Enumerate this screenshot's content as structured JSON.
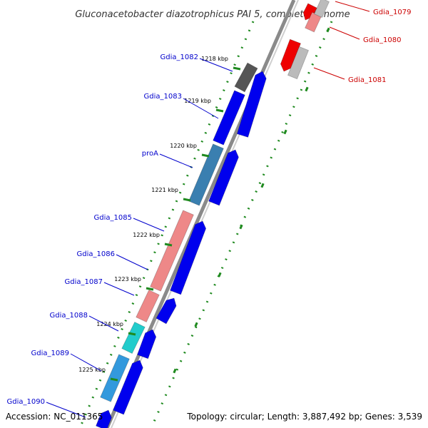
{
  "title": "Gluconacetobacter diazotrophicus PAI 5, complete genome",
  "footer": {
    "accession": "Accession: NC_011365",
    "summary": "Topology: circular; Length: 3,887,492 bp; Genes: 3,539"
  },
  "colors": {
    "backbone": "#8a8a8a",
    "tick": "#1f8a1f",
    "label_blue": "#0000cc",
    "label_red": "#cc0000",
    "gene_blue": "#0000ee",
    "gene_red": "#ee0000",
    "gene_pink": "#ee8888",
    "gene_steel": "#3a7fb0",
    "gene_teal": "#22cccc",
    "gene_cyan": "#3399dd",
    "gene_gray": "#555555",
    "gene_lightgray": "#bbbbbb"
  },
  "ticks": [
    {
      "label": "1218 kbp"
    },
    {
      "label": "1219 kbp"
    },
    {
      "label": "1220 kbp"
    },
    {
      "label": "1221 kbp"
    },
    {
      "label": "1222 kbp"
    },
    {
      "label": "1223 kbp"
    },
    {
      "label": "1224 kbp"
    },
    {
      "label": "1225 kbp"
    }
  ],
  "gene_labels": [
    {
      "text": "Gdia_1079",
      "color": "red"
    },
    {
      "text": "Gdia_1080",
      "color": "red"
    },
    {
      "text": "Gdia_1081",
      "color": "red"
    },
    {
      "text": "Gdia_1082",
      "color": "blue"
    },
    {
      "text": "Gdia_1083",
      "color": "blue"
    },
    {
      "text": "proA",
      "color": "blue"
    },
    {
      "text": "Gdia_1085",
      "color": "blue"
    },
    {
      "text": "Gdia_1086",
      "color": "blue"
    },
    {
      "text": "Gdia_1087",
      "color": "blue"
    },
    {
      "text": "Gdia_1088",
      "color": "blue"
    },
    {
      "text": "Gdia_1089",
      "color": "blue"
    },
    {
      "text": "Gdia_1090",
      "color": "blue"
    }
  ]
}
